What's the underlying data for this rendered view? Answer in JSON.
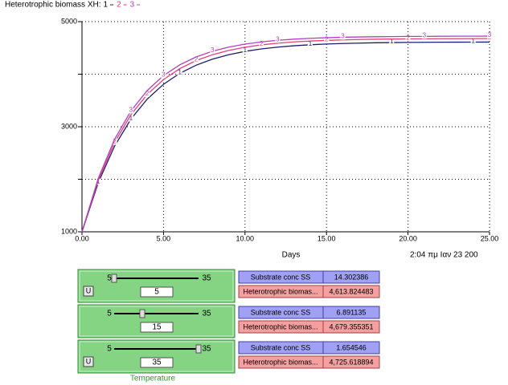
{
  "chart_data": {
    "type": "line",
    "title": "Heterotrophic biomass XH:",
    "x_label": "Days",
    "timestamp": "2:04 πμ Ιαν 23 200",
    "x": [
      0,
      1,
      2,
      3,
      4,
      5,
      6,
      7,
      8,
      9,
      10,
      11,
      12,
      13,
      14,
      15,
      16,
      17,
      18,
      19,
      20,
      21,
      22,
      23,
      24,
      25
    ],
    "series": [
      {
        "name": "1",
        "color": "#1c1c6c",
        "values": [
          1000,
          1937,
          2631,
          3145,
          3525,
          3808,
          4017,
          4171,
          4286,
          4371,
          4434,
          4481,
          4515,
          4541,
          4560,
          4574,
          4584,
          4592,
          4598,
          4602,
          4605,
          4607,
          4609,
          4610,
          4611,
          4612
        ]
      },
      {
        "name": "2",
        "color": "#e0407a",
        "values": [
          1000,
          1981,
          2700,
          3227,
          3614,
          3898,
          4106,
          4259,
          4371,
          4453,
          4513,
          4558,
          4590,
          4614,
          4631,
          4644,
          4653,
          4660,
          4665,
          4669,
          4672,
          4674,
          4675,
          4676,
          4677,
          4678
        ]
      },
      {
        "name": "3",
        "color": "#b040c0",
        "values": [
          1000,
          2020,
          2761,
          3299,
          3689,
          3973,
          4179,
          4328,
          4437,
          4516,
          4573,
          4615,
          4645,
          4667,
          4683,
          4694,
          4703,
          4709,
          4713,
          4716,
          4719,
          4720,
          4722,
          4723,
          4723,
          4724
        ]
      }
    ],
    "xlim": [
      0,
      25
    ],
    "xticks": [
      {
        "value": 0,
        "label": "0.00"
      },
      {
        "value": 5,
        "label": "5.00"
      },
      {
        "value": 10,
        "label": "10.00"
      },
      {
        "value": 15,
        "label": "15.00"
      },
      {
        "value": 20,
        "label": "20.00"
      },
      {
        "value": 25,
        "label": "25.00"
      }
    ],
    "ylim": [
      1000,
      5000
    ],
    "yticks": [
      1000,
      3000,
      5000
    ],
    "yminor_ticks": [
      2000,
      4000
    ],
    "grid": true
  },
  "controls": [
    {
      "min": "5",
      "max": "35",
      "value": 5,
      "button": "U"
    },
    {
      "min": "5",
      "max": "35",
      "value": 15
    },
    {
      "min": "5",
      "max": "35",
      "value": 35,
      "button": "U",
      "label": "Temperature"
    }
  ],
  "readouts": [
    [
      {
        "label": "Substrate conc SS",
        "value": "14.302386"
      },
      {
        "label": "Heterotrophic biomas...",
        "value": "4,613.824483"
      }
    ],
    [
      {
        "label": "Substrate conc SS",
        "value": "6.891135"
      },
      {
        "label": "Heterotrophic biomas...",
        "value": "4,679.355351"
      }
    ],
    [
      {
        "label": "Substrate conc SS",
        "value": "1.654546"
      },
      {
        "label": "Heterotrophic biomas...",
        "value": "4,725.618894"
      }
    ]
  ]
}
